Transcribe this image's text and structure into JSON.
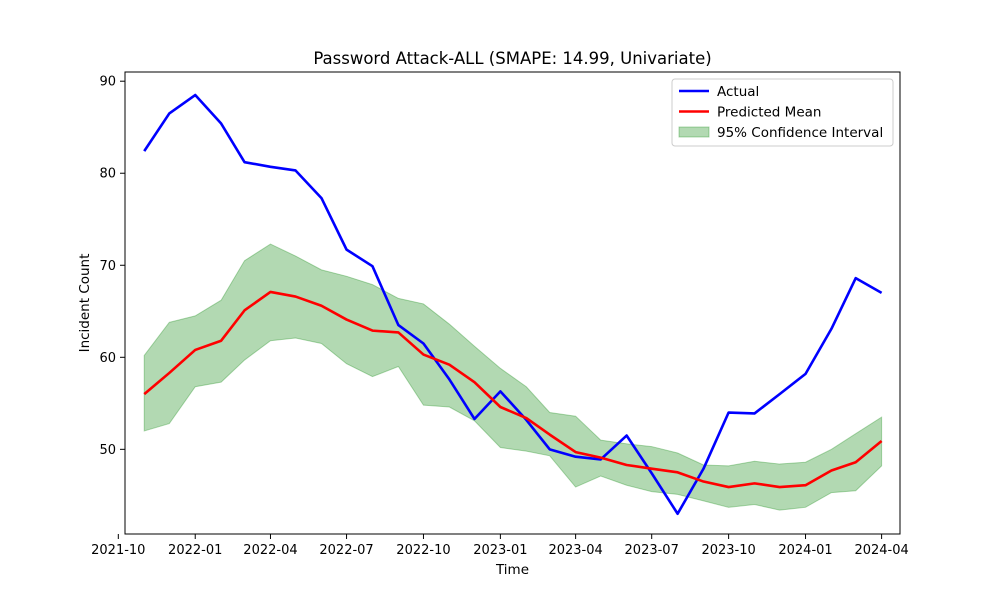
{
  "chart_data": {
    "type": "line",
    "title": "Password Attack-ALL (SMAPE: 14.99, Univariate)",
    "xlabel": "Time",
    "ylabel": "Incident Count",
    "x_tick_labels": [
      "2021-10",
      "2022-01",
      "2022-04",
      "2022-07",
      "2022-10",
      "2023-01",
      "2023-04",
      "2023-07",
      "2023-10",
      "2024-01",
      "2024-04"
    ],
    "y_ticks": [
      50,
      60,
      70,
      80,
      90
    ],
    "ylim": [
      40.8,
      91.0
    ],
    "xlim": [
      "2021-10-09",
      "2024-04-23"
    ],
    "grid": false,
    "legend_position": "top-right",
    "x": [
      "2021-11-01",
      "2021-12-01",
      "2022-01-01",
      "2022-02-01",
      "2022-03-01",
      "2022-04-01",
      "2022-05-01",
      "2022-06-01",
      "2022-07-01",
      "2022-08-01",
      "2022-09-01",
      "2022-10-01",
      "2022-11-01",
      "2022-12-01",
      "2023-01-01",
      "2023-02-01",
      "2023-03-01",
      "2023-04-01",
      "2023-05-01",
      "2023-06-01",
      "2023-07-01",
      "2023-08-01",
      "2023-09-01",
      "2023-10-01",
      "2023-11-01",
      "2023-12-01",
      "2024-01-01",
      "2024-02-01",
      "2024-03-01",
      "2024-04-01"
    ],
    "series": [
      {
        "name": "Actual",
        "color": "#0000ff",
        "values": [
          82.4,
          86.5,
          88.5,
          85.4,
          81.2,
          80.7,
          80.3,
          77.3,
          71.7,
          69.9,
          63.5,
          61.5,
          57.6,
          53.3,
          56.3,
          53.2,
          50.0,
          49.2,
          48.9,
          51.5,
          47.4,
          43.0,
          47.9,
          54.0,
          53.9,
          56.0,
          58.2,
          63.1,
          68.6,
          67.0
        ]
      },
      {
        "name": "Predicted Mean",
        "color": "#ff0000",
        "values": [
          56.0,
          58.3,
          60.8,
          61.8,
          65.1,
          67.1,
          66.6,
          65.6,
          64.1,
          62.9,
          62.7,
          60.3,
          59.2,
          57.3,
          54.6,
          53.4,
          51.6,
          49.7,
          49.1,
          48.3,
          47.9,
          47.5,
          46.5,
          45.9,
          46.3,
          45.9,
          46.1,
          47.7,
          48.6,
          50.9
        ]
      }
    ],
    "confidence_interval": {
      "name": "95% Confidence Interval",
      "color": "#008000",
      "lower": [
        52.0,
        52.8,
        56.8,
        57.3,
        59.7,
        61.8,
        62.1,
        61.5,
        59.3,
        57.9,
        59.0,
        54.8,
        54.6,
        53.1,
        50.2,
        49.8,
        49.3,
        45.9,
        47.1,
        46.1,
        45.4,
        45.1,
        44.4,
        43.7,
        44.0,
        43.4,
        43.7,
        45.3,
        45.5,
        48.2
      ],
      "upper": [
        60.2,
        63.8,
        64.5,
        66.2,
        70.5,
        72.3,
        71.0,
        69.5,
        68.8,
        67.9,
        66.4,
        65.8,
        63.6,
        61.2,
        58.8,
        56.8,
        54.0,
        53.6,
        51.0,
        50.6,
        50.3,
        49.6,
        48.3,
        48.2,
        48.7,
        48.4,
        48.6,
        50.0,
        51.7,
        53.5
      ]
    }
  }
}
